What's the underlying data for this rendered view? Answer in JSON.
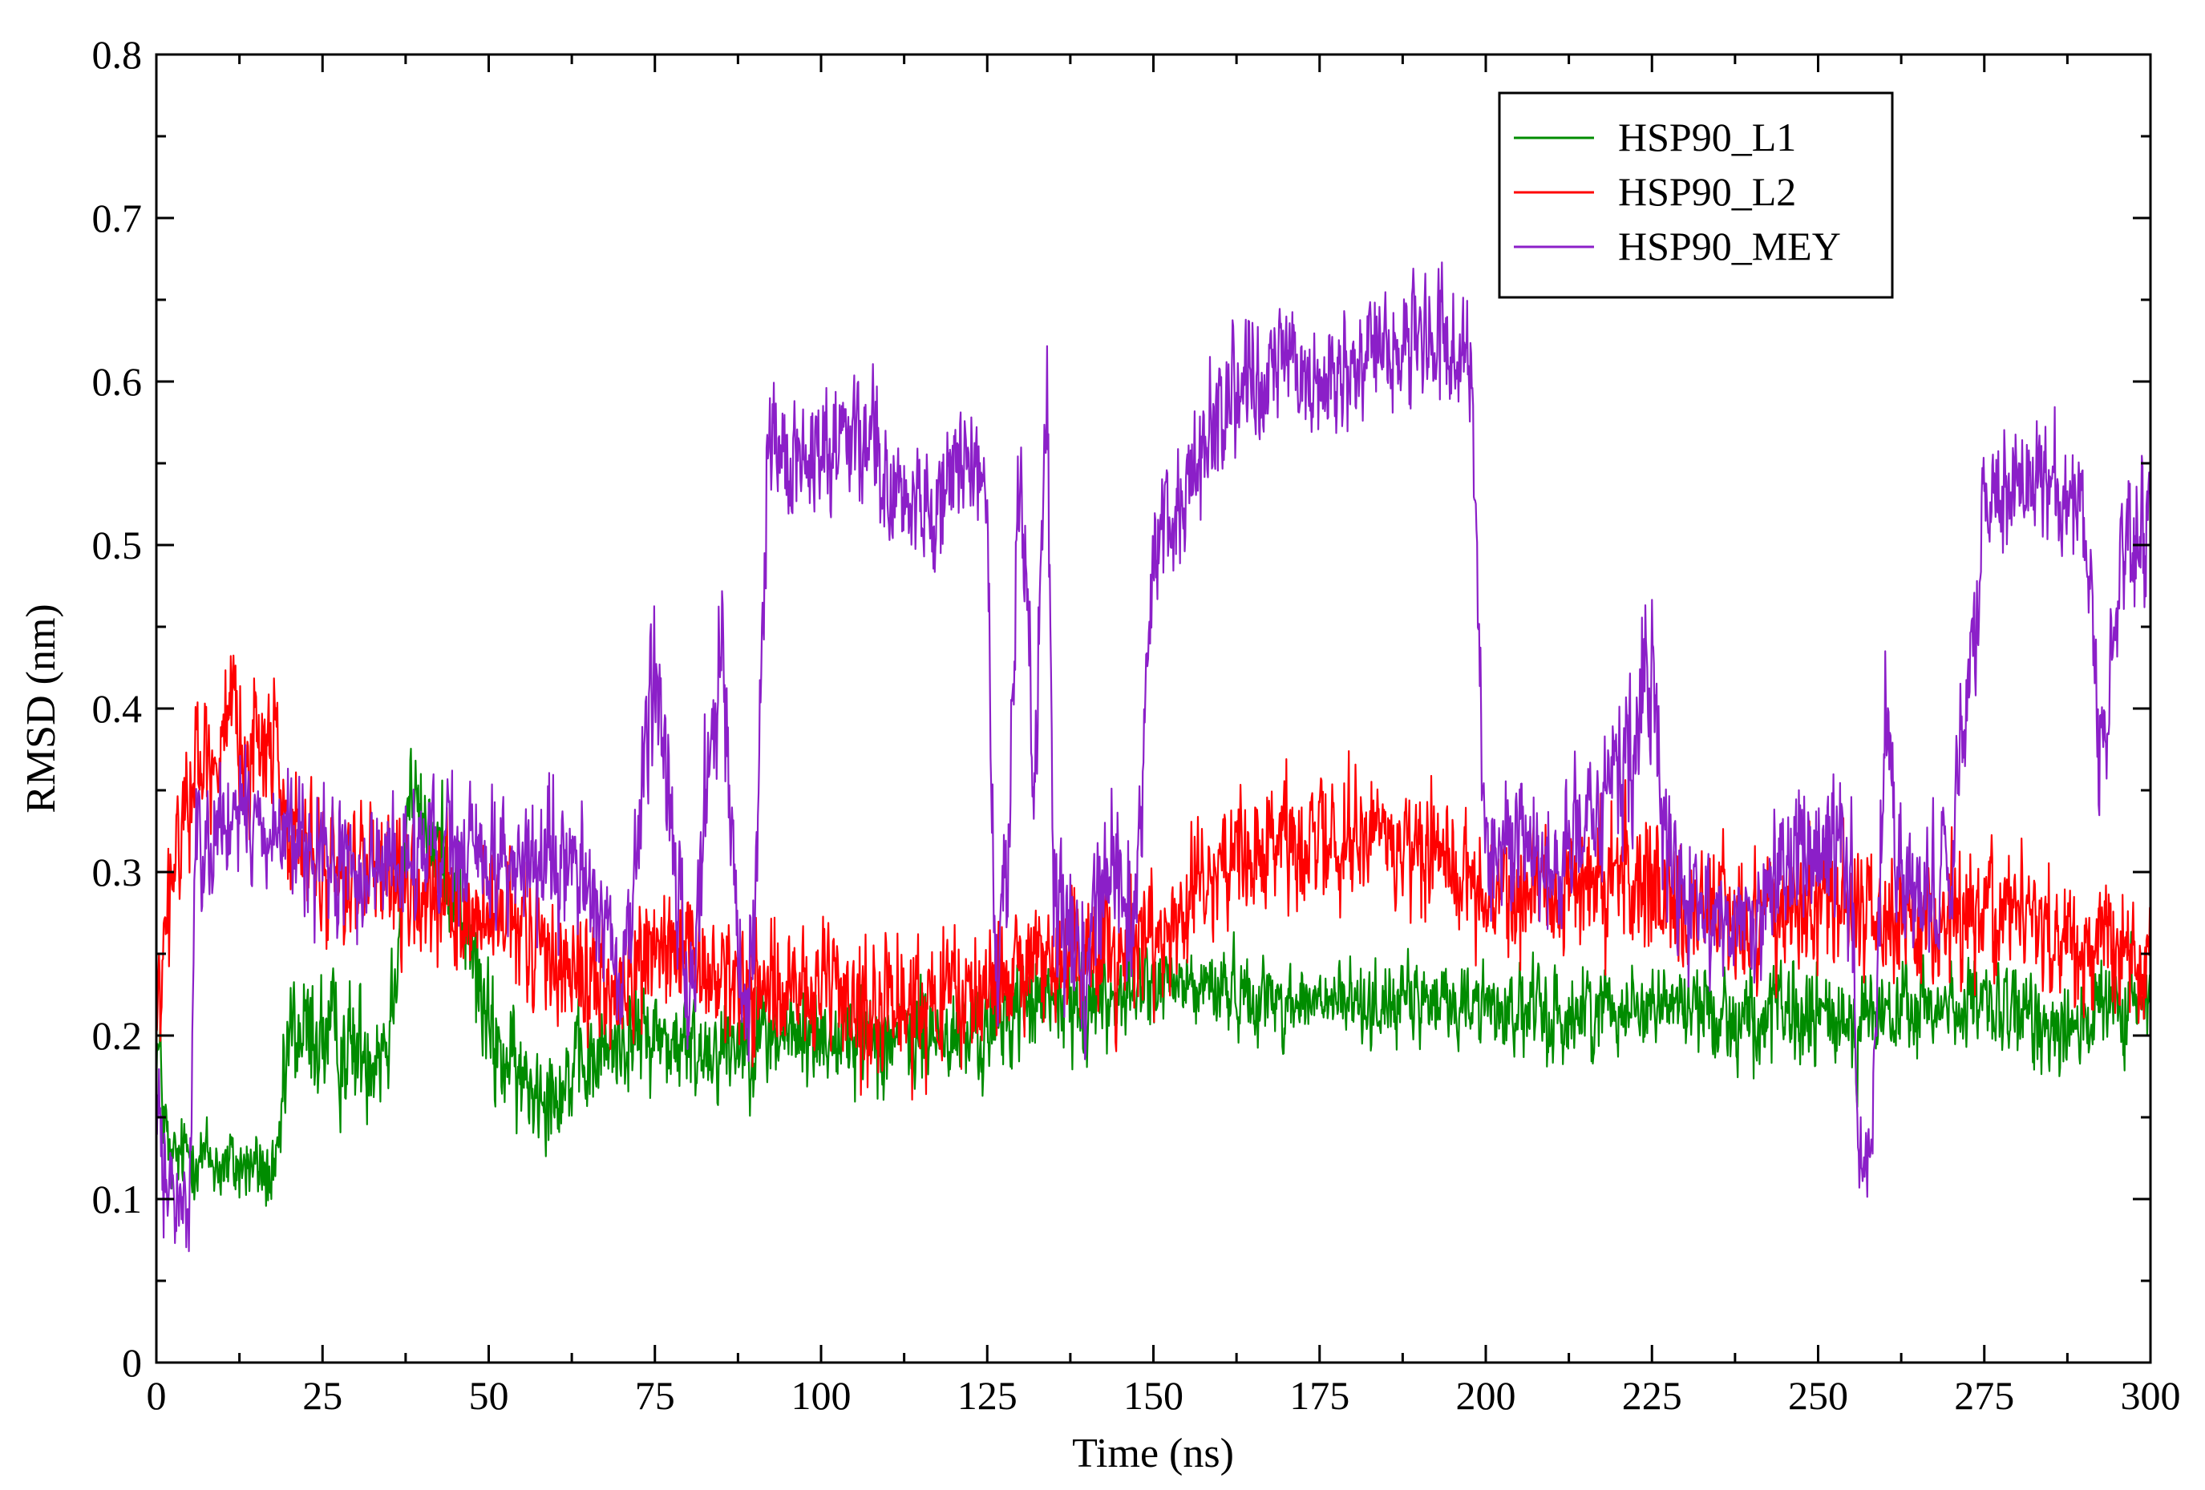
{
  "chart_data": {
    "type": "line",
    "title": "",
    "xlabel": "Time (ns)",
    "ylabel": "RMSD (nm)",
    "xlim": [
      0,
      300
    ],
    "ylim": [
      0,
      0.8
    ],
    "x_ticks": [
      "0",
      "25",
      "50",
      "75",
      "100",
      "125",
      "150",
      "175",
      "200",
      "225",
      "250",
      "275",
      "300"
    ],
    "y_ticks": [
      "0",
      "0.1",
      "0.2",
      "0.3",
      "0.4",
      "0.5",
      "0.6",
      "0.7",
      "0.8"
    ],
    "grid": false,
    "legend_position": "top-right",
    "series": [
      {
        "name": "HSP90_L1",
        "color": "#008c00",
        "x": [
          0,
          2,
          5,
          10,
          15,
          18,
          20,
          25,
          30,
          35,
          38,
          40,
          45,
          50,
          55,
          60,
          65,
          70,
          75,
          80,
          90,
          100,
          110,
          120,
          125,
          130,
          140,
          150,
          160,
          170,
          180,
          190,
          200,
          210,
          220,
          230,
          240,
          250,
          260,
          270,
          280,
          290,
          300
        ],
        "mean": [
          0.2,
          0.12,
          0.13,
          0.12,
          0.12,
          0.11,
          0.2,
          0.2,
          0.19,
          0.2,
          0.35,
          0.33,
          0.3,
          0.2,
          0.17,
          0.17,
          0.18,
          0.2,
          0.2,
          0.19,
          0.2,
          0.2,
          0.2,
          0.2,
          0.2,
          0.22,
          0.22,
          0.23,
          0.23,
          0.22,
          0.22,
          0.22,
          0.22,
          0.21,
          0.22,
          0.22,
          0.21,
          0.21,
          0.21,
          0.22,
          0.21,
          0.21,
          0.22
        ],
        "spread": [
          0.05,
          0.03,
          0.03,
          0.03,
          0.03,
          0.03,
          0.05,
          0.05,
          0.05,
          0.05,
          0.04,
          0.04,
          0.05,
          0.05,
          0.04,
          0.04,
          0.04,
          0.04,
          0.04,
          0.04,
          0.04,
          0.04,
          0.04,
          0.04,
          0.04,
          0.04,
          0.04,
          0.03,
          0.03,
          0.03,
          0.03,
          0.03,
          0.03,
          0.04,
          0.03,
          0.03,
          0.04,
          0.04,
          0.04,
          0.03,
          0.04,
          0.04,
          0.04
        ]
      },
      {
        "name": "HSP90_L2",
        "color": "#ff0000",
        "x": [
          0,
          2,
          5,
          10,
          15,
          18,
          20,
          25,
          30,
          40,
          50,
          60,
          70,
          75,
          80,
          90,
          100,
          110,
          120,
          130,
          140,
          150,
          160,
          170,
          180,
          190,
          200,
          210,
          220,
          230,
          240,
          250,
          260,
          270,
          280,
          290,
          300
        ],
        "mean": [
          0.2,
          0.28,
          0.36,
          0.38,
          0.38,
          0.38,
          0.32,
          0.3,
          0.3,
          0.28,
          0.27,
          0.25,
          0.22,
          0.26,
          0.24,
          0.23,
          0.22,
          0.22,
          0.22,
          0.24,
          0.25,
          0.26,
          0.3,
          0.32,
          0.32,
          0.32,
          0.29,
          0.28,
          0.3,
          0.28,
          0.27,
          0.28,
          0.27,
          0.27,
          0.28,
          0.25,
          0.25
        ],
        "spread": [
          0.05,
          0.06,
          0.05,
          0.05,
          0.05,
          0.05,
          0.05,
          0.05,
          0.05,
          0.05,
          0.05,
          0.05,
          0.05,
          0.06,
          0.05,
          0.05,
          0.05,
          0.05,
          0.05,
          0.05,
          0.05,
          0.05,
          0.05,
          0.05,
          0.05,
          0.05,
          0.05,
          0.05,
          0.06,
          0.05,
          0.05,
          0.05,
          0.05,
          0.05,
          0.05,
          0.05,
          0.05
        ]
      },
      {
        "name": "HSP90_MEY",
        "color": "#8b1fc8",
        "x": [
          0,
          2,
          5,
          6,
          10,
          15,
          20,
          25,
          30,
          40,
          50,
          60,
          65,
          70,
          72,
          75,
          78,
          80,
          85,
          88,
          90,
          92,
          95,
          100,
          105,
          108,
          110,
          115,
          120,
          125,
          126,
          128,
          130,
          132,
          134,
          135,
          138,
          140,
          142,
          145,
          147,
          150,
          155,
          160,
          165,
          170,
          175,
          180,
          185,
          190,
          195,
          198,
          200,
          205,
          210,
          215,
          220,
          225,
          228,
          230,
          235,
          240,
          245,
          250,
          255,
          256,
          258,
          260,
          262,
          265,
          270,
          275,
          280,
          285,
          290,
          293,
          296,
          300
        ],
        "mean": [
          0.15,
          0.1,
          0.1,
          0.32,
          0.33,
          0.33,
          0.32,
          0.3,
          0.3,
          0.31,
          0.31,
          0.3,
          0.3,
          0.22,
          0.3,
          0.45,
          0.3,
          0.22,
          0.45,
          0.22,
          0.25,
          0.55,
          0.55,
          0.56,
          0.57,
          0.58,
          0.53,
          0.52,
          0.55,
          0.53,
          0.25,
          0.3,
          0.55,
          0.35,
          0.6,
          0.3,
          0.25,
          0.25,
          0.3,
          0.3,
          0.25,
          0.5,
          0.53,
          0.58,
          0.6,
          0.61,
          0.6,
          0.61,
          0.62,
          0.63,
          0.62,
          0.6,
          0.3,
          0.32,
          0.3,
          0.33,
          0.35,
          0.42,
          0.3,
          0.28,
          0.27,
          0.27,
          0.3,
          0.33,
          0.3,
          0.12,
          0.12,
          0.4,
          0.3,
          0.28,
          0.3,
          0.53,
          0.54,
          0.54,
          0.52,
          0.35,
          0.5,
          0.52
        ],
        "spread": [
          0.05,
          0.04,
          0.04,
          0.05,
          0.05,
          0.05,
          0.05,
          0.05,
          0.05,
          0.05,
          0.05,
          0.05,
          0.05,
          0.04,
          0.06,
          0.08,
          0.06,
          0.05,
          0.06,
          0.05,
          0.06,
          0.05,
          0.05,
          0.05,
          0.05,
          0.05,
          0.05,
          0.05,
          0.05,
          0.05,
          0.06,
          0.06,
          0.06,
          0.06,
          0.06,
          0.06,
          0.06,
          0.06,
          0.06,
          0.06,
          0.06,
          0.05,
          0.05,
          0.05,
          0.05,
          0.05,
          0.05,
          0.05,
          0.05,
          0.05,
          0.05,
          0.05,
          0.05,
          0.05,
          0.05,
          0.05,
          0.06,
          0.07,
          0.06,
          0.05,
          0.05,
          0.05,
          0.06,
          0.06,
          0.06,
          0.04,
          0.04,
          0.07,
          0.06,
          0.05,
          0.05,
          0.05,
          0.05,
          0.05,
          0.05,
          0.06,
          0.06,
          0.06
        ]
      }
    ]
  }
}
